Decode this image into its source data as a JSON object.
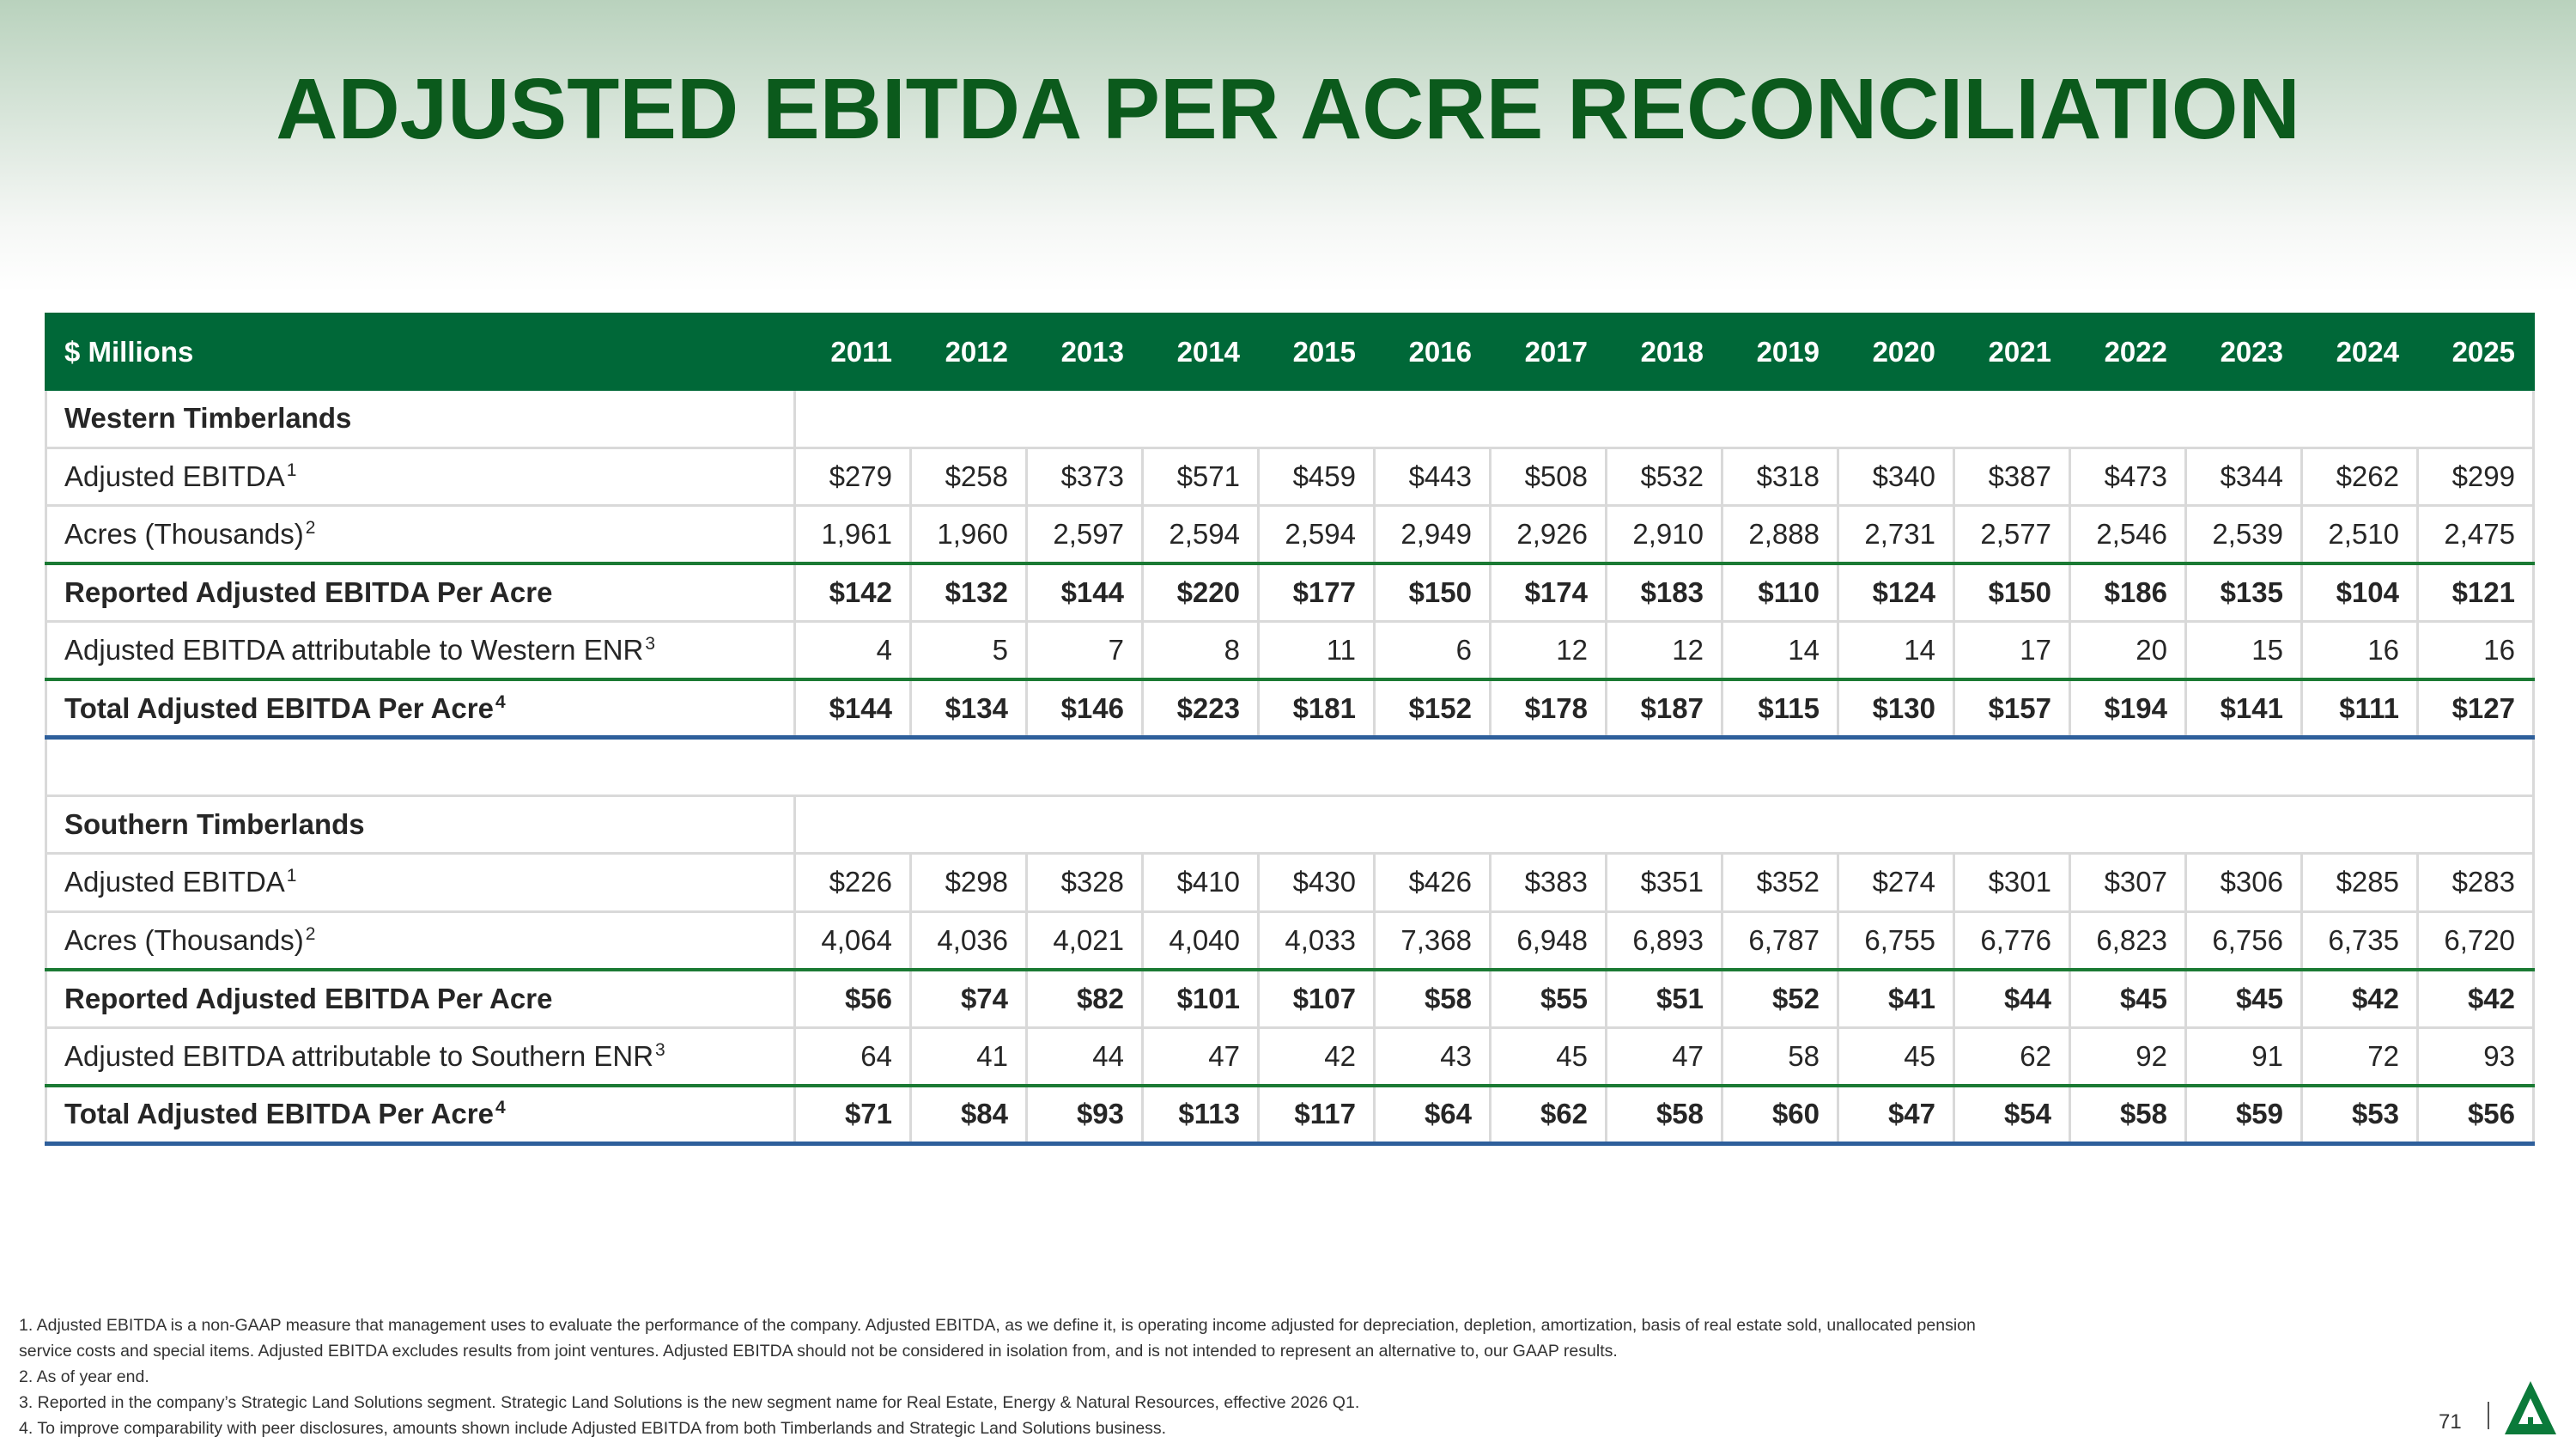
{
  "title": "ADJUSTED EBITDA PER ACRE RECONCILIATION",
  "table": {
    "header_label": "$ Millions",
    "years": [
      "2011",
      "2012",
      "2013",
      "2014",
      "2015",
      "2016",
      "2017",
      "2018",
      "2019",
      "2020",
      "2021",
      "2022",
      "2023",
      "2024",
      "2025"
    ],
    "western": {
      "section_label": "Western Timberlands",
      "ebitda_label": "Adjusted EBITDA",
      "ebitda_sup": "1",
      "ebitda": [
        "$279",
        "$258",
        "$373",
        "$571",
        "$459",
        "$443",
        "$508",
        "$532",
        "$318",
        "$340",
        "$387",
        "$473",
        "$344",
        "$262",
        "$299"
      ],
      "acres_label": "Acres (Thousands)",
      "acres_sup": "2",
      "acres": [
        "1,961",
        "1,960",
        "2,597",
        "2,594",
        "2,594",
        "2,949",
        "2,926",
        "2,910",
        "2,888",
        "2,731",
        "2,577",
        "2,546",
        "2,539",
        "2,510",
        "2,475"
      ],
      "reported_label": "Reported Adjusted EBITDA Per Acre",
      "reported": [
        "$142",
        "$132",
        "$144",
        "$220",
        "$177",
        "$150",
        "$174",
        "$183",
        "$110",
        "$124",
        "$150",
        "$186",
        "$135",
        "$104",
        "$121"
      ],
      "enr_label": "Adjusted EBITDA attributable to Western ENR",
      "enr_sup": "3",
      "enr": [
        "4",
        "5",
        "7",
        "8",
        "11",
        "6",
        "12",
        "12",
        "14",
        "14",
        "17",
        "20",
        "15",
        "16",
        "16"
      ],
      "total_label": "Total Adjusted EBITDA Per Acre",
      "total_sup": "4",
      "total": [
        "$144",
        "$134",
        "$146",
        "$223",
        "$181",
        "$152",
        "$178",
        "$187",
        "$115",
        "$130",
        "$157",
        "$194",
        "$141",
        "$111",
        "$127"
      ]
    },
    "southern": {
      "section_label": "Southern Timberlands",
      "ebitda_label": "Adjusted EBITDA",
      "ebitda_sup": "1",
      "ebitda": [
        "$226",
        "$298",
        "$328",
        "$410",
        "$430",
        "$426",
        "$383",
        "$351",
        "$352",
        "$274",
        "$301",
        "$307",
        "$306",
        "$285",
        "$283"
      ],
      "acres_label": "Acres (Thousands)",
      "acres_sup": "2",
      "acres": [
        "4,064",
        "4,036",
        "4,021",
        "4,040",
        "4,033",
        "7,368",
        "6,948",
        "6,893",
        "6,787",
        "6,755",
        "6,776",
        "6,823",
        "6,756",
        "6,735",
        "6,720"
      ],
      "reported_label": "Reported Adjusted EBITDA Per Acre",
      "reported": [
        "$56",
        "$74",
        "$82",
        "$101",
        "$107",
        "$58",
        "$55",
        "$51",
        "$52",
        "$41",
        "$44",
        "$45",
        "$45",
        "$42",
        "$42"
      ],
      "enr_label": "Adjusted EBITDA attributable to Southern ENR",
      "enr_sup": "3",
      "enr": [
        "64",
        "41",
        "44",
        "47",
        "42",
        "43",
        "45",
        "47",
        "58",
        "45",
        "62",
        "92",
        "91",
        "72",
        "93"
      ],
      "total_label": "Total Adjusted EBITDA Per Acre",
      "total_sup": "4",
      "total": [
        "$71",
        "$84",
        "$93",
        "$113",
        "$117",
        "$64",
        "$62",
        "$58",
        "$60",
        "$47",
        "$54",
        "$58",
        "$59",
        "$53",
        "$56"
      ]
    }
  },
  "footnotes": {
    "line1": "1. Adjusted EBITDA is a non-GAAP measure that management uses to evaluate the performance of the company. Adjusted EBITDA, as we define it, is operating income adjusted for depreciation, depletion, amortization, basis of real estate sold, unallocated pension",
    "line2": "service costs and special items. Adjusted EBITDA excludes results from joint ventures. Adjusted EBITDA should not be considered in isolation from, and is not intended to represent an alternative to, our GAAP results.",
    "line3": "2. As of year end.",
    "line4": "3. Reported in the company’s Strategic Land Solutions segment. Strategic Land Solutions is the new segment name for Real Estate, Energy & Natural Resources, effective 2026 Q1.",
    "line5": "4. To improve comparability with peer disclosures, amounts shown include Adjusted EBITDA from both Timberlands and Strategic Land Solutions business."
  },
  "page_number": "71",
  "colors": {
    "brand_green": "#006838",
    "title_green": "#0b5a1c",
    "total_rule_blue": "#2e5f9b"
  },
  "logo_icon": "tree-logo-icon"
}
